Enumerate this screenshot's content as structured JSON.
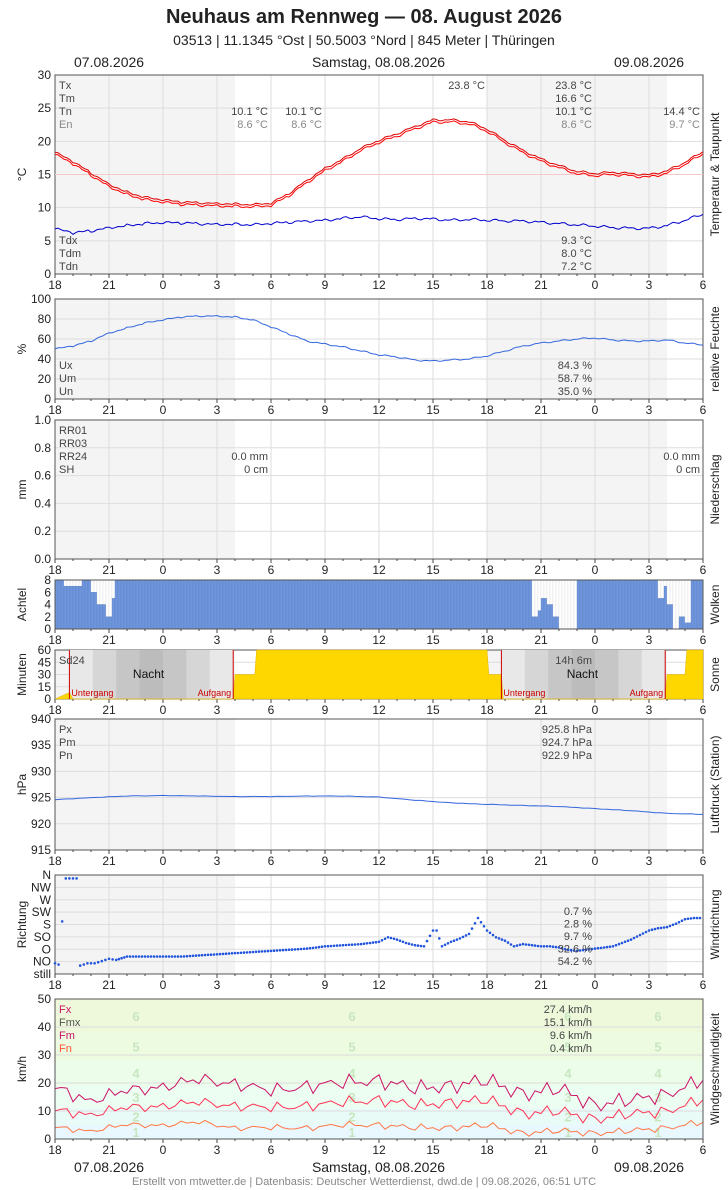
{
  "header": {
    "title": "Neuhaus am Rennweg  —  08. August 2026",
    "subtitle": "03513  |  11.1345 °Ost  |  50.5003 °Nord  |  845 Meter  |  Thüringen"
  },
  "dates": {
    "left": "07.08.2026",
    "center": "Samstag, 08.08.2026",
    "right": "09.08.2026"
  },
  "footer": "Erstellt von mtwetter.de | Datenbasis: Deutscher Wetterdienst, dwd.de | 09.08.2026, 06:51 UTC",
  "x_ticks": [
    "18",
    "21",
    "0",
    "3",
    "6",
    "9",
    "12",
    "15",
    "18",
    "21",
    "0",
    "3",
    "6"
  ],
  "colors": {
    "temp": "#ff0000",
    "dew": "#0000cc",
    "humidity": "#3366dd",
    "cloud": "#6f96dd",
    "sun": "#ffd700",
    "pressure": "#3366dd",
    "wind_dir": "#2255dd",
    "fx": "#cc1166",
    "fm": "#ff3355",
    "fn": "#ff7744"
  },
  "chart_data": [
    {
      "type": "line",
      "id": "temperature",
      "ylabel": "°C",
      "side_label": "Temperatur & Taupunkt",
      "ylim": [
        0,
        30
      ],
      "y_ticks": [
        "0",
        "5",
        "10",
        "15",
        "20",
        "25",
        "30"
      ],
      "x_range_hours": [
        0,
        36
      ],
      "series": [
        {
          "name": "Tm",
          "color": "#ff0000",
          "x": [
            0,
            1,
            2,
            3,
            4,
            5,
            6,
            7,
            8,
            9,
            10,
            11,
            12,
            13,
            14,
            15,
            16,
            17,
            18,
            19,
            20,
            21,
            22,
            23,
            24,
            25,
            26,
            27,
            28,
            29,
            30,
            31,
            32,
            33,
            34,
            35,
            36
          ],
          "y": [
            18.0,
            16.6,
            14.9,
            13.2,
            12.0,
            11.2,
            10.8,
            10.5,
            10.4,
            10.3,
            10.2,
            10.1,
            10.3,
            11.8,
            13.8,
            15.6,
            17.0,
            18.6,
            19.8,
            20.8,
            21.9,
            22.9,
            22.9,
            22.6,
            21.5,
            19.8,
            18.3,
            17.0,
            16.0,
            15.1,
            14.8,
            15.0,
            14.8,
            14.6,
            15.2,
            16.5,
            18.1
          ]
        },
        {
          "name": "Tdm",
          "color": "#0000cc",
          "x": [
            0,
            1,
            2,
            3,
            4,
            5,
            6,
            7,
            8,
            9,
            10,
            11,
            12,
            13,
            14,
            15,
            16,
            17,
            18,
            19,
            20,
            21,
            22,
            23,
            24,
            25,
            26,
            27,
            28,
            29,
            30,
            31,
            32,
            33,
            34,
            35,
            36
          ],
          "y": [
            6.8,
            6.2,
            6.5,
            7.0,
            7.3,
            7.6,
            7.7,
            7.7,
            7.6,
            7.5,
            7.5,
            7.4,
            7.6,
            7.8,
            8.0,
            8.1,
            8.4,
            8.6,
            8.3,
            8.2,
            8.4,
            8.3,
            8.1,
            8.2,
            8.1,
            8.0,
            8.0,
            7.8,
            7.6,
            7.4,
            7.2,
            7.0,
            6.9,
            6.9,
            7.3,
            8.1,
            9.0
          ]
        }
      ],
      "labels": [
        {
          "text": "Tx",
          "col": "left"
        },
        {
          "text": "Tm",
          "col": "left"
        },
        {
          "text": "Tn",
          "col": "left"
        },
        {
          "text": "En",
          "col": "left"
        },
        {
          "text": "Tdx",
          "col": "left_bottom"
        },
        {
          "text": "Tdm",
          "col": "left_bottom"
        },
        {
          "text": "Tdn",
          "col": "left_bottom"
        }
      ],
      "values": {
        "day1_tn": "10.1 °C",
        "day1_en": "8.6 °C",
        "day1b_tn": "10.1 °C",
        "day1b_en": "8.6 °C",
        "day2_tx_mid": "23.8 °C",
        "day2": [
          "23.8 °C",
          "16.6 °C",
          "10.1 °C",
          "8.6 °C"
        ],
        "day3_tn": "14.4 °C",
        "day3_en": "9.7 °C",
        "dew": [
          "9.3 °C",
          "8.0 °C",
          "7.2 °C"
        ]
      }
    },
    {
      "type": "line",
      "id": "humidity",
      "ylabel": "%",
      "side_label": "relative Feuchte",
      "ylim": [
        0,
        100
      ],
      "y_ticks": [
        "0",
        "20",
        "40",
        "60",
        "80",
        "100"
      ],
      "series": [
        {
          "name": "Um",
          "color": "#3366dd",
          "x": [
            0,
            1,
            2,
            3,
            4,
            5,
            6,
            7,
            8,
            9,
            10,
            11,
            12,
            13,
            14,
            15,
            16,
            17,
            18,
            19,
            20,
            21,
            22,
            23,
            24,
            25,
            26,
            27,
            28,
            29,
            30,
            31,
            32,
            33,
            34,
            35,
            36
          ],
          "y": [
            50,
            53,
            58,
            66,
            71,
            76,
            79,
            82,
            83,
            83,
            82,
            79,
            72,
            65,
            58,
            55,
            52,
            48,
            44,
            42,
            39,
            38,
            39,
            40,
            43,
            48,
            53,
            56,
            58,
            60,
            61,
            59,
            58,
            58,
            59,
            56,
            54
          ]
        }
      ],
      "labels": [
        "Ux",
        "Um",
        "Un"
      ],
      "values": [
        "84.3 %",
        "58.7 %",
        "35.0 %"
      ]
    },
    {
      "type": "bar",
      "id": "precipitation",
      "ylabel": "mm",
      "side_label": "Niederschlag",
      "ylim": [
        0,
        1
      ],
      "y_ticks": [
        "0.0",
        "0.2",
        "0.4",
        "0.6",
        "0.8",
        "1.0"
      ],
      "labels": [
        "RR01",
        "RR03",
        "RR24",
        "SH"
      ],
      "values": {
        "day1_rr24": "0.0 mm",
        "day1_sh": "0 cm",
        "day3_rr24": "0.0 mm",
        "day3_sh": "0 cm"
      }
    },
    {
      "type": "bar",
      "id": "clouds",
      "ylabel": "Achtel",
      "side_label": "Wolken",
      "ylim": [
        0,
        8
      ],
      "y_ticks": [
        "0",
        "2",
        "4",
        "6",
        "8"
      ],
      "profile": [
        [
          0,
          8
        ],
        [
          0.5,
          7
        ],
        [
          1.0,
          7
        ],
        [
          1.5,
          8
        ],
        [
          2.0,
          6
        ],
        [
          2.3,
          4
        ],
        [
          2.7,
          2
        ],
        [
          3.0,
          5
        ],
        [
          3.3,
          8
        ],
        [
          5.0,
          8
        ],
        [
          20.0,
          8
        ],
        [
          26.0,
          8
        ],
        [
          26.5,
          2
        ],
        [
          26.8,
          3
        ],
        [
          27.0,
          5
        ],
        [
          27.3,
          4
        ],
        [
          27.6,
          2
        ],
        [
          28.0,
          0
        ],
        [
          28.5,
          0
        ],
        [
          29.0,
          8
        ],
        [
          33.3,
          8
        ],
        [
          33.5,
          5
        ],
        [
          33.8,
          7
        ],
        [
          34.0,
          4
        ],
        [
          34.3,
          0
        ],
        [
          34.6,
          2
        ],
        [
          35.0,
          1
        ],
        [
          35.3,
          8
        ],
        [
          36.0,
          8
        ]
      ]
    },
    {
      "type": "area",
      "id": "sunshine",
      "ylabel": "Minuten",
      "side_label": "Sonne",
      "ylim": [
        0,
        60
      ],
      "y_ticks": [
        "0",
        "15",
        "30",
        "45",
        "60"
      ],
      "labels": {
        "sd": "Sd24",
        "night1": "Nacht",
        "night2": "Nacht",
        "set1": "Untergang",
        "rise1": "Aufgang",
        "set2": "Untergang",
        "rise2": "Aufgang",
        "daylen": "14h 6m"
      },
      "sunset_h": [
        0.8,
        24.8
      ],
      "sunrise_h": [
        9.9,
        33.9
      ],
      "sun_minutes": [
        [
          0,
          0
        ],
        [
          0.8,
          8
        ],
        [
          1.0,
          0
        ],
        [
          9.9,
          0
        ],
        [
          10.0,
          30
        ],
        [
          11.1,
          30
        ],
        [
          11.2,
          60
        ],
        [
          24.0,
          60
        ],
        [
          24.1,
          30
        ],
        [
          24.8,
          30
        ],
        [
          24.9,
          0
        ],
        [
          33.9,
          0
        ],
        [
          34.0,
          30
        ],
        [
          35.0,
          30
        ],
        [
          35.1,
          60
        ],
        [
          36.0,
          60
        ]
      ]
    },
    {
      "type": "line",
      "id": "pressure",
      "ylabel": "hPa",
      "side_label": "Luftdruck (Station)",
      "ylim": [
        915,
        940
      ],
      "y_ticks": [
        "915",
        "920",
        "925",
        "930",
        "935",
        "940"
      ],
      "series": [
        {
          "name": "Pm",
          "color": "#3366dd",
          "x": [
            0,
            2,
            4,
            6,
            8,
            10,
            12,
            14,
            16,
            18,
            20,
            22,
            24,
            26,
            28,
            30,
            32,
            34,
            36
          ],
          "y": [
            924.6,
            925.0,
            925.3,
            925.4,
            925.3,
            925.2,
            925.2,
            925.3,
            925.3,
            925.1,
            924.5,
            924.0,
            923.7,
            923.5,
            923.3,
            922.9,
            922.5,
            922.0,
            921.8
          ]
        }
      ],
      "labels": [
        "Px",
        "Pm",
        "Pn"
      ],
      "values": [
        "925.8 hPa",
        "924.7 hPa",
        "922.9 hPa"
      ]
    },
    {
      "type": "scatter",
      "id": "wind_direction",
      "ylabel": "Richtung",
      "side_label": "Windrichtung",
      "y_ticks": [
        "still",
        "NO",
        "O",
        "SO",
        "S",
        "SW",
        "W",
        "NW",
        "N"
      ],
      "labels": [],
      "values": [
        "0.7 %",
        "2.8 %",
        "9.7 %",
        "32.6 %",
        "54.2 %"
      ],
      "points_note": "level index 0=still ... 8=N",
      "segments": [
        [
          0.0,
          0.5
        ],
        [
          0.2,
          0.4
        ],
        [
          0.6,
          8
        ],
        [
          0.8,
          8
        ],
        [
          1.0,
          8
        ],
        [
          1.2,
          8
        ],
        [
          1.4,
          0.3
        ],
        [
          1.8,
          0.5
        ],
        [
          2.2,
          0.5
        ],
        [
          2.6,
          0.7
        ],
        [
          3.0,
          0.9
        ],
        [
          3.4,
          0.8
        ],
        [
          4,
          1.1
        ],
        [
          5,
          1.1
        ],
        [
          6,
          1.1
        ],
        [
          7,
          1.1
        ],
        [
          8,
          1.2
        ],
        [
          9,
          1.3
        ],
        [
          10,
          1.4
        ],
        [
          11,
          1.5
        ],
        [
          12,
          1.6
        ],
        [
          13,
          1.7
        ],
        [
          14,
          1.8
        ],
        [
          15,
          2.0
        ],
        [
          16,
          2.1
        ],
        [
          17,
          2.2
        ],
        [
          18,
          2.4
        ],
        [
          18.5,
          2.8
        ],
        [
          19,
          2.6
        ],
        [
          19.5,
          2.3
        ],
        [
          20,
          2.1
        ],
        [
          20.5,
          2.0
        ],
        [
          21,
          3.4
        ],
        [
          21.2,
          3.4
        ],
        [
          21.5,
          2.0
        ],
        [
          22,
          2.4
        ],
        [
          22.5,
          2.7
        ],
        [
          23,
          3.1
        ],
        [
          23.5,
          4.5
        ],
        [
          24,
          3.4
        ],
        [
          24.5,
          2.8
        ],
        [
          25,
          2.5
        ],
        [
          25.5,
          2.0
        ],
        [
          26,
          2.2
        ],
        [
          26.5,
          2.1
        ],
        [
          27,
          2.0
        ],
        [
          27.5,
          2.0
        ],
        [
          28,
          1.9
        ],
        [
          28.5,
          1.7
        ],
        [
          29,
          1.6
        ],
        [
          29.5,
          1.7
        ],
        [
          30,
          1.8
        ],
        [
          30.5,
          1.9
        ],
        [
          31,
          2.0
        ],
        [
          31.5,
          2.3
        ],
        [
          32,
          2.6
        ],
        [
          32.5,
          3.0
        ],
        [
          33,
          3.4
        ],
        [
          33.5,
          3.6
        ],
        [
          34,
          3.7
        ],
        [
          34.5,
          4.0
        ],
        [
          35,
          4.4
        ],
        [
          35.5,
          4.5
        ],
        [
          36,
          4.5
        ]
      ]
    },
    {
      "type": "line",
      "id": "wind_speed",
      "ylabel": "km/h",
      "side_label": "Windgeschwindigkeit",
      "ylim": [
        0,
        50
      ],
      "y_ticks": [
        "0",
        "10",
        "20",
        "30",
        "40",
        "50"
      ],
      "beaufort": [
        "1",
        "2",
        "3",
        "4",
        "5",
        "6"
      ],
      "series": [
        {
          "name": "Fmx",
          "color": "#cc1166",
          "x": [
            0,
            2,
            4,
            6,
            8,
            10,
            12,
            14,
            16,
            18,
            20,
            22,
            24,
            26,
            28,
            30,
            32,
            34,
            36
          ],
          "y": [
            18,
            14,
            17,
            19,
            21,
            20,
            17,
            19,
            20,
            21,
            18,
            19,
            21,
            16,
            18,
            12,
            14,
            16,
            21
          ]
        },
        {
          "name": "Fm",
          "color": "#ff3355",
          "x": [
            0,
            2,
            4,
            6,
            8,
            10,
            12,
            14,
            16,
            18,
            20,
            22,
            24,
            26,
            28,
            30,
            32,
            34,
            36
          ],
          "y": [
            10,
            9,
            11,
            12,
            13,
            12,
            11,
            12,
            13,
            14,
            12,
            13,
            14,
            9,
            10,
            7,
            9,
            10,
            14
          ]
        },
        {
          "name": "Fn",
          "color": "#ff7744",
          "x": [
            0,
            2,
            4,
            6,
            8,
            10,
            12,
            14,
            16,
            18,
            20,
            22,
            24,
            26,
            28,
            30,
            32,
            34,
            36
          ],
          "y": [
            4,
            3,
            5,
            5,
            6,
            4,
            4,
            4,
            5,
            5,
            4,
            4,
            5,
            2,
            3,
            2,
            3,
            4,
            6
          ]
        }
      ],
      "labels": [
        "Fx",
        "Fmx",
        "Fm",
        "Fn"
      ],
      "values": [
        "27.4 km/h",
        "15.1 km/h",
        "9.6 km/h",
        "0.4 km/h"
      ]
    }
  ]
}
